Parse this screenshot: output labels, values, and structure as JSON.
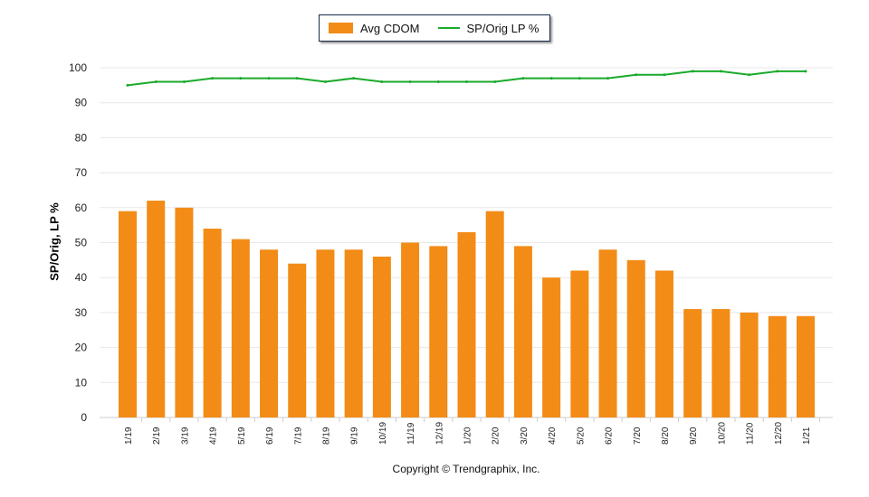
{
  "chart_data": {
    "type": "bar",
    "title": "",
    "xlabel": "",
    "ylabel": "SP/Orig, LP %",
    "ylim": [
      0,
      100
    ],
    "yticks": [
      0,
      10,
      20,
      30,
      40,
      50,
      60,
      70,
      80,
      90,
      100
    ],
    "grid": true,
    "legend_placement": "top-center",
    "categories": [
      "1/19",
      "2/19",
      "3/19",
      "4/19",
      "5/19",
      "6/19",
      "7/19",
      "8/19",
      "9/19",
      "10/19",
      "11/19",
      "12/19",
      "1/20",
      "2/20",
      "3/20",
      "4/20",
      "5/20",
      "6/20",
      "7/20",
      "8/20",
      "9/20",
      "10/20",
      "11/20",
      "12/20",
      "1/21"
    ],
    "series": [
      {
        "name": "Avg CDOM",
        "type": "bar",
        "color": "#f28c17",
        "values": [
          59,
          62,
          60,
          54,
          51,
          48,
          44,
          48,
          48,
          46,
          50,
          49,
          53,
          59,
          49,
          40,
          42,
          48,
          45,
          42,
          31,
          31,
          30,
          29,
          29
        ]
      },
      {
        "name": "SP/Orig LP %",
        "type": "line",
        "color": "#1aaa2a",
        "values": [
          95,
          96,
          96,
          97,
          97,
          97,
          97,
          96,
          97,
          96,
          96,
          96,
          96,
          96,
          97,
          97,
          97,
          97,
          98,
          98,
          99,
          99,
          98,
          99,
          99
        ]
      }
    ]
  },
  "footer": {
    "copyright": "Copyright © Trendgraphix, Inc."
  }
}
